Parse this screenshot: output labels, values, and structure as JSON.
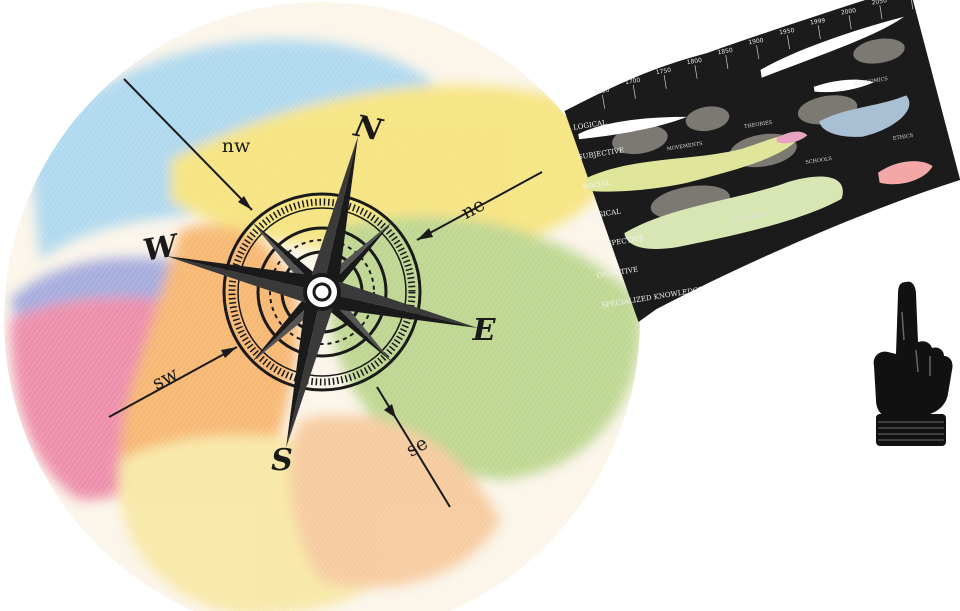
{
  "compass": {
    "labels": {
      "n": "N",
      "e": "E",
      "s": "S",
      "w": "W",
      "ne": "ne",
      "nw": "nw",
      "se": "se",
      "sw": "sw"
    }
  },
  "colors": {
    "cloud_blue": "#a9d6ef",
    "cloud_yellow": "#f6e37a",
    "cloud_green": "#b9d48a",
    "cloud_pink": "#ec86a6",
    "cloud_orange": "#f7b36a",
    "cloud_purple": "#9fa6dc",
    "ink": "#1a1a1a",
    "map_background": "#1b1b1b",
    "map_band_green": "#d8e6b4",
    "map_band_blue": "#a9bfd4",
    "map_band_pink": "#f3a7a7"
  },
  "chronological_map": {
    "tick_labels": [
      "1650",
      "1700",
      "1750",
      "1800",
      "1850",
      "1900",
      "1950",
      "1999",
      "2000",
      "2050",
      "2100"
    ],
    "row_labels": [
      "LOGICAL",
      "SUBJECTIVE",
      "SOCIAL",
      "LOGICAL",
      "PERSPECTIVE",
      "OBJECTIVE",
      "SPECIALIZED KNOWLEDGE"
    ],
    "cell_labels": [
      "MOVEMENTS",
      "THEORIES",
      "SCHOOLS",
      "ECONOMICS",
      "PRAGMATISM",
      "ETHICS"
    ]
  },
  "pointing_hand": {
    "icon": "pointing-hand-icon"
  }
}
